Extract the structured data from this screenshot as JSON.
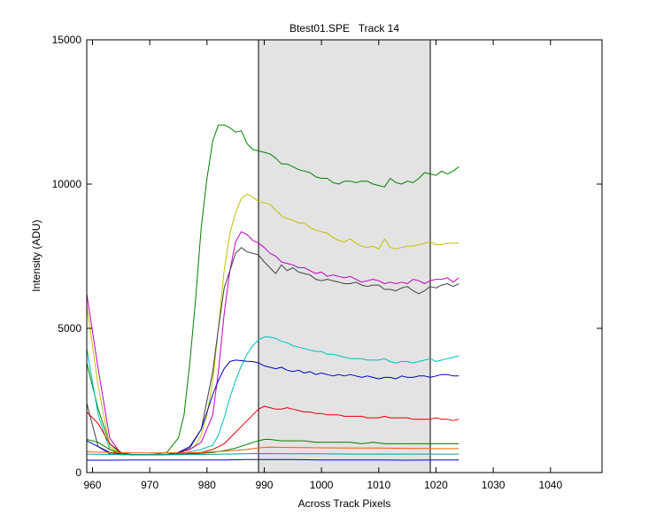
{
  "chart_data": {
    "type": "line",
    "title": "Btest01.SPE   Track 14",
    "xlabel": "Across Track Pixels",
    "ylabel": "Intensity (ADU)",
    "xlim": [
      959,
      1049
    ],
    "ylim": [
      0,
      15000
    ],
    "xticks": [
      960,
      970,
      980,
      990,
      1000,
      1010,
      1020,
      1030,
      1040
    ],
    "yticks": [
      0,
      5000,
      10000,
      15000
    ],
    "shaded_region": [
      989,
      1019
    ],
    "grid": false,
    "series": [
      {
        "color": "#008000",
        "x": [
          959,
          961,
          963,
          965,
          967,
          969,
          971,
          973,
          975,
          976,
          977,
          978,
          979,
          980,
          981,
          982,
          983,
          984,
          985,
          986,
          987,
          988,
          989,
          990,
          991,
          992,
          993,
          994,
          995,
          996,
          997,
          998,
          999,
          1000,
          1001,
          1002,
          1003,
          1004,
          1005,
          1006,
          1007,
          1008,
          1009,
          1010,
          1011,
          1012,
          1013,
          1014,
          1015,
          1016,
          1017,
          1018,
          1019,
          1020,
          1021,
          1022,
          1023,
          1024
        ],
        "y": [
          3800,
          2200,
          1000,
          650,
          620,
          620,
          640,
          700,
          1200,
          2000,
          3800,
          6000,
          8500,
          10200,
          11500,
          12050,
          12050,
          11950,
          11800,
          11850,
          11400,
          11200,
          11150,
          11100,
          11050,
          10900,
          10700,
          10700,
          10600,
          10500,
          10450,
          10400,
          10250,
          10200,
          10200,
          10050,
          10000,
          10100,
          10100,
          10050,
          10100,
          10100,
          10000,
          9950,
          9900,
          10200,
          10050,
          10000,
          10100,
          10050,
          10200,
          10400,
          10350,
          10300,
          10450,
          10350,
          10450,
          10600
        ]
      },
      {
        "color": "#bfbf00",
        "x": [
          959,
          961,
          963,
          965,
          967,
          969,
          971,
          973,
          975,
          977,
          978,
          979,
          980,
          981,
          982,
          983,
          984,
          985,
          986,
          987,
          988,
          989,
          990,
          991,
          992,
          993,
          994,
          995,
          996,
          997,
          998,
          999,
          1000,
          1001,
          1002,
          1003,
          1004,
          1005,
          1006,
          1007,
          1008,
          1009,
          1010,
          1011,
          1012,
          1013,
          1014,
          1015,
          1016,
          1017,
          1018,
          1019,
          1020,
          1021,
          1022,
          1023,
          1024
        ],
        "y": [
          5800,
          3000,
          900,
          620,
          620,
          620,
          620,
          630,
          680,
          800,
          950,
          1300,
          2000,
          3200,
          5000,
          7000,
          8300,
          9000,
          9500,
          9650,
          9550,
          9400,
          9350,
          9300,
          9100,
          8900,
          8800,
          8750,
          8650,
          8650,
          8500,
          8400,
          8350,
          8300,
          8150,
          8050,
          8000,
          8100,
          7950,
          7850,
          7800,
          7850,
          7750,
          8100,
          7800,
          7750,
          7800,
          7850,
          7850,
          7900,
          7950,
          8000,
          7900,
          7900,
          7950,
          7950,
          7950
        ]
      },
      {
        "color": "#c000c0",
        "x": [
          959,
          961,
          963,
          965,
          967,
          969,
          971,
          973,
          975,
          977,
          979,
          981,
          982,
          983,
          984,
          985,
          986,
          987,
          988,
          989,
          990,
          991,
          992,
          993,
          994,
          995,
          996,
          997,
          998,
          999,
          1000,
          1001,
          1002,
          1003,
          1004,
          1005,
          1006,
          1007,
          1008,
          1009,
          1010,
          1011,
          1012,
          1013,
          1014,
          1015,
          1016,
          1017,
          1018,
          1019,
          1020,
          1021,
          1022,
          1023,
          1024
        ],
        "y": [
          6200,
          3600,
          1200,
          650,
          620,
          620,
          620,
          630,
          680,
          800,
          1050,
          2000,
          3500,
          5500,
          7000,
          8000,
          8350,
          8250,
          8050,
          7950,
          7800,
          7600,
          7500,
          7300,
          7250,
          7200,
          7100,
          7100,
          7000,
          6900,
          6950,
          6800,
          6850,
          6800,
          6750,
          6800,
          6700,
          6600,
          6650,
          6700,
          6650,
          6550,
          6600,
          6550,
          6600,
          6550,
          6700,
          6650,
          6550,
          6650,
          6700,
          6700,
          6750,
          6600,
          6750
        ]
      },
      {
        "color": "#404040",
        "x": [
          959,
          961,
          963,
          965,
          967,
          969,
          971,
          973,
          975,
          977,
          979,
          980,
          981,
          982,
          983,
          984,
          985,
          986,
          987,
          988,
          989,
          990,
          991,
          992,
          993,
          994,
          995,
          996,
          997,
          998,
          999,
          1000,
          1001,
          1002,
          1003,
          1004,
          1005,
          1006,
          1007,
          1008,
          1009,
          1010,
          1011,
          1012,
          1013,
          1014,
          1015,
          1016,
          1017,
          1018,
          1019,
          1020,
          1021,
          1022,
          1023,
          1024
        ],
        "y": [
          2400,
          900,
          650,
          620,
          620,
          620,
          620,
          630,
          680,
          850,
          1500,
          2500,
          3500,
          5000,
          6400,
          7000,
          7600,
          7800,
          7650,
          7600,
          7550,
          7300,
          7100,
          6900,
          7200,
          7000,
          7100,
          6950,
          6900,
          6850,
          6700,
          6650,
          6700,
          6650,
          6600,
          6550,
          6550,
          6600,
          6500,
          6450,
          6500,
          6500,
          6350,
          6350,
          6300,
          6400,
          6450,
          6300,
          6200,
          6300,
          6450,
          6400,
          6500,
          6550,
          6450,
          6550
        ]
      },
      {
        "color": "#00bfbf",
        "x": [
          959,
          961,
          963,
          965,
          967,
          969,
          971,
          973,
          975,
          977,
          979,
          981,
          982,
          983,
          984,
          985,
          986,
          987,
          988,
          989,
          990,
          991,
          992,
          993,
          994,
          995,
          996,
          997,
          998,
          999,
          1000,
          1001,
          1002,
          1003,
          1004,
          1005,
          1006,
          1007,
          1008,
          1009,
          1010,
          1011,
          1012,
          1013,
          1014,
          1015,
          1016,
          1017,
          1018,
          1019,
          1020,
          1021,
          1022,
          1023,
          1024
        ],
        "y": [
          4300,
          2000,
          800,
          650,
          620,
          620,
          620,
          630,
          650,
          720,
          800,
          950,
          1300,
          1900,
          2600,
          3200,
          3700,
          4100,
          4400,
          4600,
          4700,
          4700,
          4650,
          4550,
          4500,
          4400,
          4350,
          4300,
          4250,
          4200,
          4200,
          4100,
          4100,
          4050,
          4000,
          3950,
          3950,
          3950,
          3900,
          3900,
          3900,
          3950,
          3850,
          3800,
          3850,
          3850,
          3800,
          3850,
          3900,
          3950,
          3850,
          3900,
          3950,
          4000,
          4050
        ]
      },
      {
        "color": "#0000c0",
        "x": [
          959,
          961,
          963,
          965,
          967,
          969,
          971,
          973,
          975,
          977,
          979,
          980,
          981,
          982,
          983,
          984,
          985,
          986,
          987,
          988,
          989,
          990,
          991,
          992,
          993,
          994,
          995,
          996,
          997,
          998,
          999,
          1000,
          1001,
          1002,
          1003,
          1004,
          1005,
          1006,
          1007,
          1008,
          1009,
          1010,
          1011,
          1012,
          1013,
          1014,
          1015,
          1016,
          1017,
          1018,
          1019,
          1020,
          1021,
          1022,
          1023,
          1024
        ],
        "y": [
          1100,
          900,
          700,
          650,
          620,
          620,
          620,
          630,
          700,
          900,
          1500,
          2100,
          2700,
          3200,
          3600,
          3850,
          3900,
          3880,
          3860,
          3850,
          3800,
          3700,
          3650,
          3600,
          3650,
          3550,
          3500,
          3550,
          3450,
          3500,
          3400,
          3450,
          3400,
          3350,
          3400,
          3350,
          3400,
          3350,
          3300,
          3350,
          3300,
          3250,
          3300,
          3300,
          3250,
          3350,
          3300,
          3300,
          3350,
          3350,
          3300,
          3350,
          3400,
          3400,
          3350,
          3350
        ]
      },
      {
        "color": "#e00000",
        "x": [
          959,
          961,
          963,
          965,
          967,
          969,
          971,
          973,
          975,
          977,
          979,
          981,
          983,
          984,
          985,
          986,
          987,
          988,
          989,
          990,
          991,
          992,
          993,
          994,
          995,
          996,
          997,
          998,
          999,
          1000,
          1001,
          1002,
          1003,
          1004,
          1005,
          1006,
          1007,
          1008,
          1009,
          1010,
          1011,
          1012,
          1013,
          1014,
          1015,
          1016,
          1017,
          1018,
          1019,
          1020,
          1021,
          1022,
          1023,
          1024
        ],
        "y": [
          2100,
          1700,
          1000,
          700,
          620,
          620,
          620,
          620,
          640,
          660,
          700,
          800,
          1000,
          1200,
          1400,
          1600,
          1800,
          2000,
          2200,
          2300,
          2250,
          2200,
          2200,
          2250,
          2200,
          2150,
          2100,
          2100,
          2050,
          2050,
          2000,
          2000,
          2000,
          1950,
          1950,
          1950,
          1950,
          1900,
          1900,
          1900,
          1950,
          1900,
          1900,
          1900,
          1900,
          1850,
          1850,
          1850,
          1850,
          1900,
          1850,
          1850,
          1800,
          1850
        ]
      },
      {
        "color": "#008000",
        "x": [
          959,
          961,
          963,
          965,
          967,
          969,
          971,
          973,
          975,
          977,
          979,
          981,
          983,
          985,
          987,
          988,
          989,
          990,
          991,
          993,
          995,
          997,
          999,
          1001,
          1003,
          1005,
          1007,
          1009,
          1011,
          1013,
          1015,
          1017,
          1019,
          1021,
          1023,
          1024
        ],
        "y": [
          1150,
          1050,
          800,
          650,
          620,
          620,
          620,
          620,
          630,
          650,
          670,
          700,
          760,
          850,
          980,
          1050,
          1100,
          1150,
          1150,
          1100,
          1100,
          1100,
          1050,
          1050,
          1050,
          1050,
          1000,
          1050,
          1000,
          1000,
          1000,
          1000,
          1000,
          1000,
          1000,
          1000
        ]
      },
      {
        "color": "#ff5a00",
        "x": [
          959,
          963,
          967,
          971,
          975,
          979,
          983,
          987,
          989,
          991,
          995,
          1000,
          1005,
          1010,
          1015,
          1020,
          1024
        ],
        "y": [
          720,
          700,
          680,
          680,
          680,
          700,
          740,
          800,
          860,
          880,
          870,
          860,
          850,
          850,
          840,
          830,
          830
        ]
      },
      {
        "color": "#00a0a0",
        "x": [
          959,
          963,
          967,
          971,
          975,
          979,
          983,
          987,
          989,
          995,
          1000,
          1005,
          1010,
          1015,
          1020,
          1024
        ],
        "y": [
          640,
          630,
          620,
          620,
          620,
          630,
          640,
          650,
          660,
          650,
          650,
          640,
          640,
          640,
          640,
          640
        ]
      },
      {
        "color": "#0000e0",
        "x": [
          959,
          963,
          967,
          971,
          975,
          979,
          983,
          987,
          989,
          995,
          1000,
          1005,
          1010,
          1015,
          1020,
          1024
        ],
        "y": [
          430,
          430,
          440,
          440,
          440,
          440,
          440,
          450,
          450,
          450,
          440,
          440,
          440,
          430,
          440,
          440
        ]
      }
    ]
  }
}
